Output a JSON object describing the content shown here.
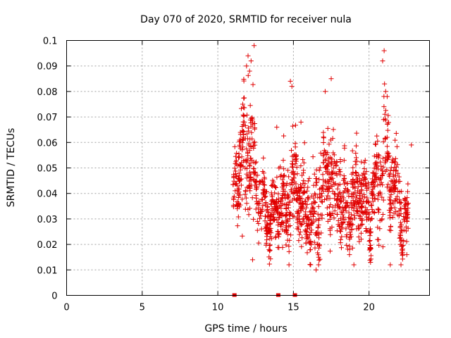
{
  "chart_data": {
    "type": "scatter",
    "title": "Day 070 of 2020, SRMTID for receiver nula",
    "xlabel": "GPS time / hours",
    "ylabel": "SRMTID / TECUs",
    "xlim": [
      0,
      24
    ],
    "ylim": [
      0,
      0.1
    ],
    "xticks": [
      0,
      5,
      10,
      15,
      20
    ],
    "xtick_labels": [
      "0",
      "5",
      "10",
      "15",
      "20"
    ],
    "yticks": [
      0,
      0.01,
      0.02,
      0.03,
      0.04,
      0.05,
      0.06,
      0.07,
      0.08,
      0.09,
      0.1
    ],
    "ytick_labels": [
      "0",
      "0.01",
      "0.02",
      "0.03",
      "0.04",
      "0.05",
      "0.06",
      "0.07",
      "0.08",
      "0.09",
      "0.1"
    ],
    "grid": true,
    "marker": "+",
    "color": "#e00000",
    "zero_markers_x": [
      11.1,
      14.0,
      15.1
    ],
    "envelope": {
      "x": [
        11.0,
        11.5,
        11.8,
        12.0,
        12.3,
        12.6,
        13.0,
        13.5,
        14.0,
        14.5,
        14.8,
        15.0,
        15.5,
        16.0,
        16.5,
        17.0,
        17.3,
        17.8,
        18.5,
        19.0,
        19.5,
        20.0,
        20.3,
        20.7,
        21.0,
        21.5,
        22.0,
        22.3,
        22.6
      ],
      "center": [
        0.041,
        0.05,
        0.055,
        0.056,
        0.054,
        0.04,
        0.035,
        0.03,
        0.036,
        0.034,
        0.038,
        0.045,
        0.037,
        0.03,
        0.032,
        0.04,
        0.048,
        0.038,
        0.035,
        0.038,
        0.042,
        0.03,
        0.04,
        0.045,
        0.055,
        0.047,
        0.035,
        0.025,
        0.03
      ],
      "spread": [
        0.008,
        0.018,
        0.022,
        0.022,
        0.02,
        0.012,
        0.01,
        0.009,
        0.011,
        0.012,
        0.015,
        0.012,
        0.012,
        0.012,
        0.012,
        0.014,
        0.018,
        0.013,
        0.013,
        0.014,
        0.013,
        0.01,
        0.012,
        0.016,
        0.02,
        0.015,
        0.012,
        0.008,
        0.006
      ]
    },
    "n_points": 1500,
    "outliers": [
      {
        "x": 12.0,
        "y": 0.094
      },
      {
        "x": 12.2,
        "y": 0.092
      },
      {
        "x": 12.4,
        "y": 0.098
      },
      {
        "x": 11.9,
        "y": 0.09
      },
      {
        "x": 12.1,
        "y": 0.088
      },
      {
        "x": 14.8,
        "y": 0.084
      },
      {
        "x": 14.9,
        "y": 0.082
      },
      {
        "x": 17.5,
        "y": 0.085
      },
      {
        "x": 17.1,
        "y": 0.08
      },
      {
        "x": 21.0,
        "y": 0.096
      },
      {
        "x": 20.9,
        "y": 0.092
      },
      {
        "x": 21.1,
        "y": 0.08
      },
      {
        "x": 21.2,
        "y": 0.078
      },
      {
        "x": 12.3,
        "y": 0.014
      },
      {
        "x": 16.5,
        "y": 0.01
      },
      {
        "x": 19.0,
        "y": 0.012
      },
      {
        "x": 20.1,
        "y": 0.013
      },
      {
        "x": 22.5,
        "y": 0.016
      },
      {
        "x": 22.8,
        "y": 0.059
      },
      {
        "x": 13.9,
        "y": 0.066
      },
      {
        "x": 15.5,
        "y": 0.068
      }
    ]
  }
}
